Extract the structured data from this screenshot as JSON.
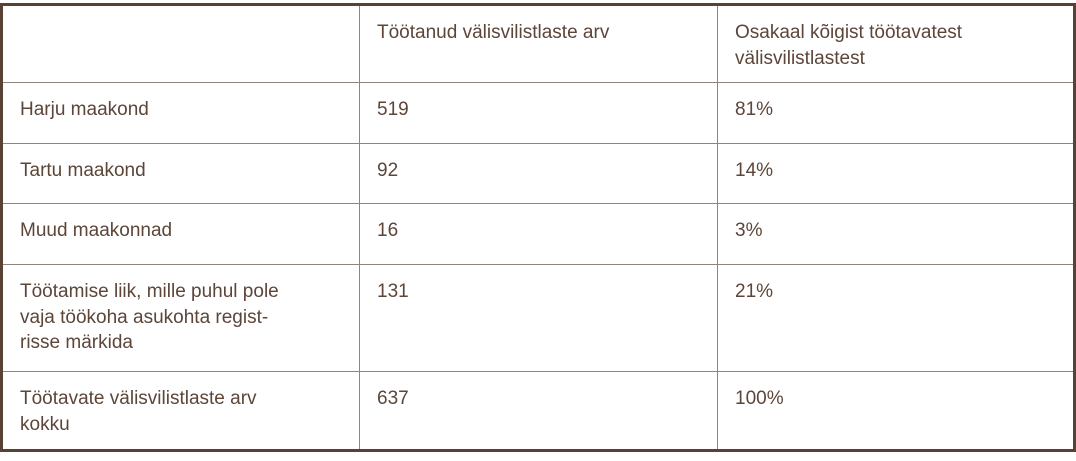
{
  "table": {
    "columns": [
      "",
      "Töötanud välisvilistlaste arv",
      "Osakaal kõigist töötavatest\nvälisvilistlastest"
    ],
    "rows": [
      {
        "label": "Harju maakond",
        "count": "519",
        "share": "81%"
      },
      {
        "label": "Tartu maakond",
        "count": "92",
        "share": "14%"
      },
      {
        "label": "Muud maakonnad",
        "count": "16",
        "share": "3%"
      },
      {
        "label": "Töötamise liik, mille puhul pole\nvaja töökoha asukohta regist-\nrisse märkida",
        "count": "131",
        "share": "21%"
      },
      {
        "label": "Töötavate välisvilistlaste arv\nkokku",
        "count": "637",
        "share": "100%"
      }
    ],
    "colors": {
      "text": "#5c4539",
      "outer_border": "#5a4136",
      "inner_border": "#94837a",
      "background": "#ffffff"
    }
  }
}
